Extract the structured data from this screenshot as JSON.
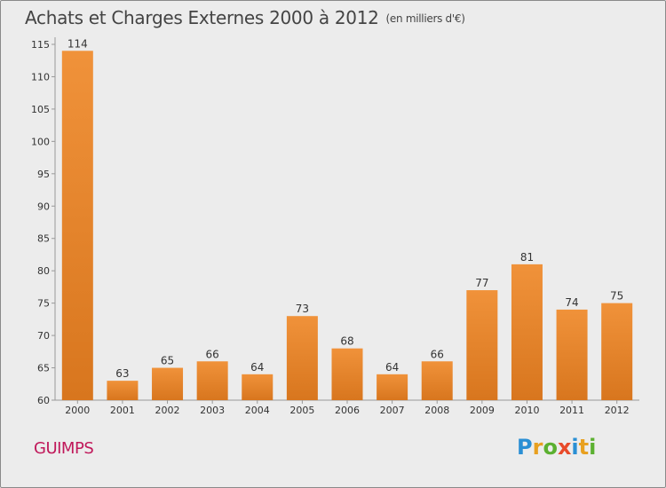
{
  "title": "Achats et Charges Externes 2000 à 2012",
  "subtitle": "(en milliers d'€)",
  "commune": "GUIMPS",
  "logo": {
    "letters": [
      "P",
      "r",
      "o",
      "x",
      "i",
      "t",
      "i"
    ],
    "colors": [
      "#2a8fd4",
      "#e8a020",
      "#5bb030",
      "#e84a2a",
      "#2a8fd4",
      "#e8a020",
      "#5bb030"
    ]
  },
  "colors": {
    "bar": "#f0923a",
    "bar_dark": "#d8761e",
    "axis": "#999999"
  },
  "chart_data": {
    "type": "bar",
    "categories": [
      "2000",
      "2001",
      "2002",
      "2003",
      "2004",
      "2005",
      "2006",
      "2007",
      "2008",
      "2009",
      "2010",
      "2011",
      "2012"
    ],
    "values": [
      114,
      63,
      65,
      66,
      64,
      73,
      68,
      64,
      66,
      77,
      81,
      74,
      75
    ],
    "ylim": [
      60,
      115
    ],
    "yticks": [
      60,
      65,
      70,
      75,
      80,
      85,
      90,
      95,
      100,
      105,
      110,
      115
    ],
    "grid": false
  }
}
